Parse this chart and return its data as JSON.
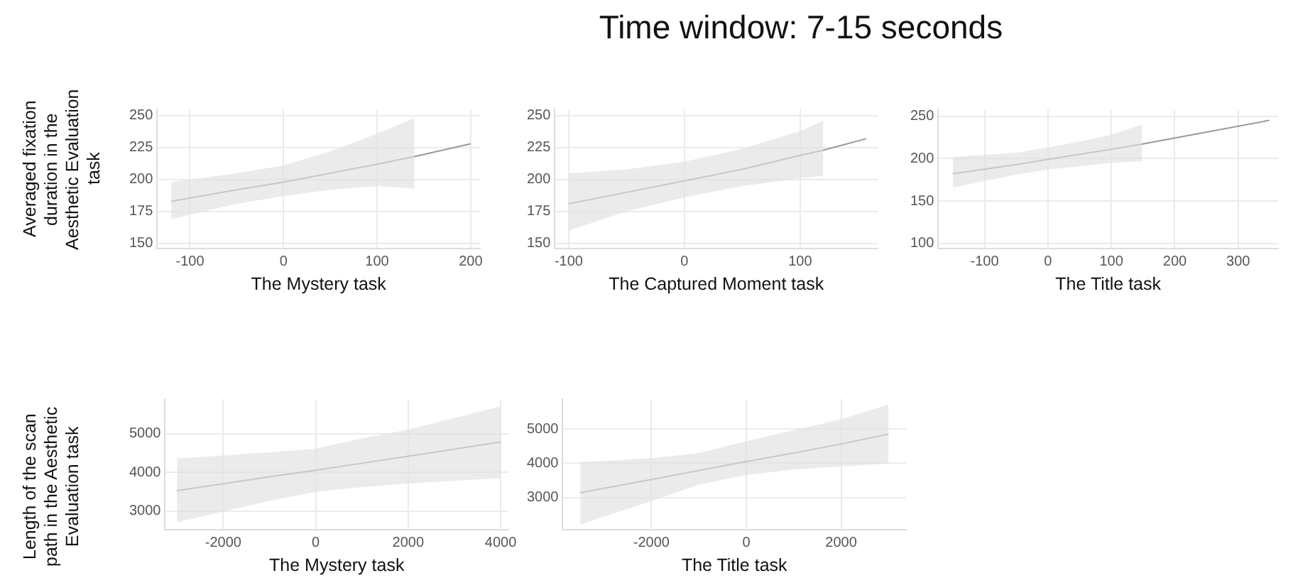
{
  "chart_data": [
    {
      "type": "line",
      "ylabel": "Averaged fixation duration in the Aesthetic Evaluation task",
      "xlabel": "The Mystery task",
      "x": [
        -120,
        -50,
        0,
        50,
        100,
        140,
        200
      ],
      "series": [
        {
          "color": "#999999",
          "values": [
            183,
            192,
            198,
            205,
            212,
            218,
            228
          ],
          "lower": [
            169,
            181,
            187,
            192,
            195,
            193,
            null
          ],
          "upper": [
            198,
            205,
            211,
            222,
            236,
            248,
            null
          ]
        }
      ],
      "xlim": [
        -135,
        210
      ],
      "ylim": [
        146,
        255
      ],
      "xticks": [
        -100,
        0,
        100,
        200
      ],
      "yticks": [
        150,
        175,
        200,
        225,
        250
      ],
      "grid": true
    },
    {
      "type": "line",
      "title": "Time window: 7-15 seconds",
      "xlabel": "The Captured Moment task",
      "x": [
        -100,
        -50,
        0,
        50,
        100,
        120,
        157
      ],
      "series": [
        {
          "color": "#999999",
          "values": [
            181,
            190,
            199,
            208,
            219,
            223,
            232
          ],
          "lower": [
            160,
            175,
            186,
            195,
            201,
            203,
            null
          ],
          "upper": [
            205,
            208,
            214,
            224,
            238,
            246,
            null
          ]
        }
      ],
      "xlim": [
        -112,
        167
      ],
      "ylim": [
        146,
        255
      ],
      "xticks": [
        -100,
        0,
        100
      ],
      "yticks": [
        150,
        175,
        200,
        225,
        250
      ],
      "grid": true
    },
    {
      "type": "line",
      "xlabel": "The Title task",
      "x": [
        -150,
        -50,
        0,
        50,
        100,
        148,
        349
      ],
      "series": [
        {
          "color": "#999999",
          "values": [
            182,
            193,
            199,
            205,
            211,
            217,
            245
          ],
          "lower": [
            166,
            181,
            187,
            191,
            195,
            197,
            null
          ],
          "upper": [
            202,
            207,
            213,
            220,
            228,
            240,
            null
          ]
        }
      ],
      "xlim": [
        -173,
        363
      ],
      "ylim": [
        94,
        258
      ],
      "xticks": [
        -100,
        0,
        100,
        200,
        300
      ],
      "yticks": [
        100,
        150,
        200,
        250
      ],
      "grid": true
    },
    {
      "type": "line",
      "ylabel": "Length of the scan path in the Aesthetic Evaluation task",
      "xlabel": "The Mystery task",
      "x": [
        -3000,
        -1000,
        0,
        1000,
        2000,
        4000
      ],
      "series": [
        {
          "color": "#999999",
          "values": [
            3530,
            3890,
            4060,
            4240,
            4420,
            4790
          ],
          "lower": [
            2710,
            3270,
            3500,
            3620,
            3720,
            3850
          ],
          "upper": [
            4360,
            4520,
            4620,
            4880,
            5110,
            5710
          ]
        }
      ],
      "xlim": [
        -3256,
        4167
      ],
      "ylim": [
        2520,
        5900
      ],
      "xticks": [
        -2000,
        0,
        2000,
        4000
      ],
      "yticks": [
        3000,
        4000,
        5000
      ],
      "grid": true
    },
    {
      "type": "line",
      "xlabel": "The Title task",
      "x": [
        -3500,
        -2000,
        -1000,
        0,
        1000,
        2000,
        3000
      ],
      "series": [
        {
          "color": "#999999",
          "values": [
            3140,
            3530,
            3790,
            4050,
            4300,
            4560,
            4850
          ],
          "lower": [
            2220,
            2900,
            3380,
            3660,
            3820,
            3910,
            3990
          ],
          "upper": [
            4030,
            4150,
            4300,
            4640,
            4960,
            5280,
            5710
          ]
        }
      ],
      "xlim": [
        -3870,
        3370
      ],
      "ylim": [
        2067,
        5870
      ],
      "xticks": [
        -2000,
        0,
        2000
      ],
      "yticks": [
        3000,
        4000,
        5000
      ],
      "grid": true
    }
  ]
}
